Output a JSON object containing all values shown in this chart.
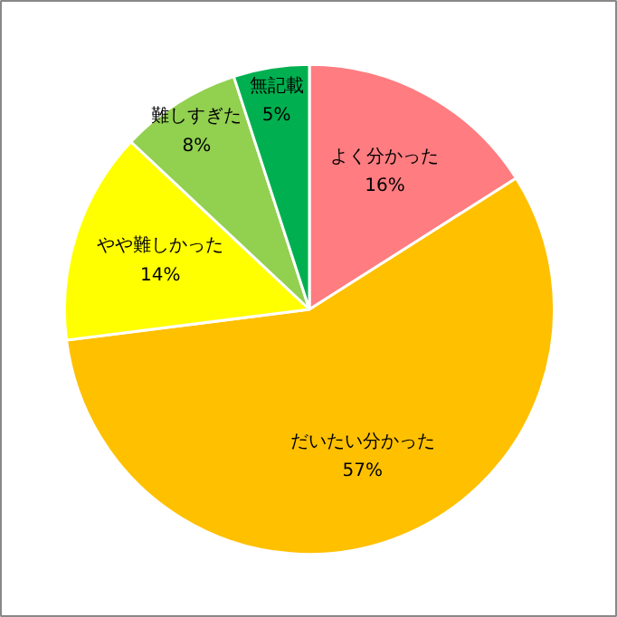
{
  "chart_data": {
    "type": "pie",
    "categories": [
      "よく分かった",
      "だいたい分かった",
      "やや難しかった",
      "難しすぎた",
      "無記載"
    ],
    "values": [
      16,
      57,
      14,
      8,
      5
    ],
    "colors": [
      "#ff7c80",
      "#ffc000",
      "#ffff00",
      "#92d050",
      "#00b050"
    ],
    "value_labels": [
      "16%",
      "57%",
      "14%",
      "8%",
      "5%"
    ]
  }
}
